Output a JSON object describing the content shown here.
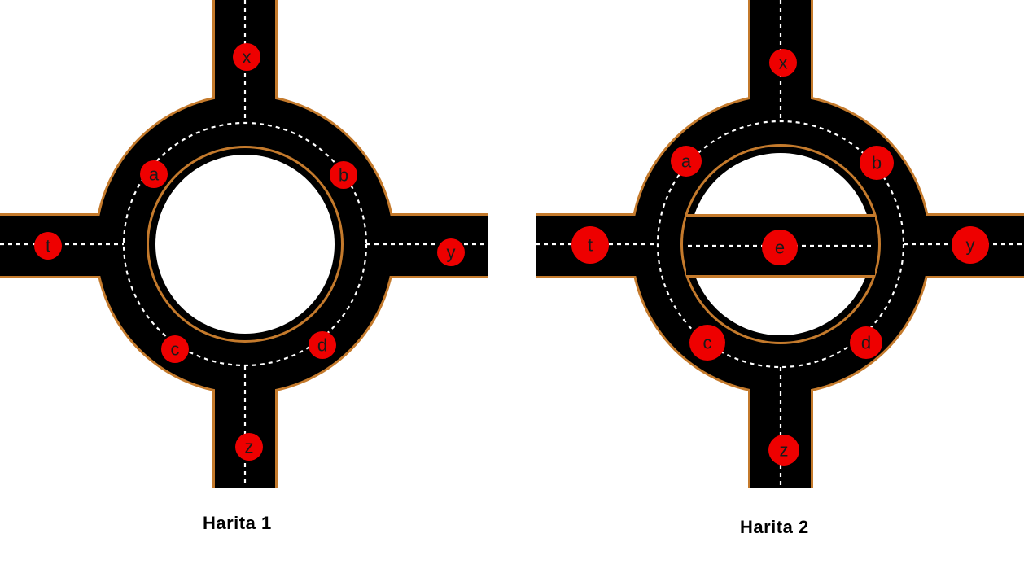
{
  "maps": [
    {
      "caption": "Harita 1",
      "nodes": [
        {
          "id": "x",
          "label": "x"
        },
        {
          "id": "a",
          "label": "a"
        },
        {
          "id": "b",
          "label": "b"
        },
        {
          "id": "t",
          "label": "t"
        },
        {
          "id": "y",
          "label": "y"
        },
        {
          "id": "c",
          "label": "c"
        },
        {
          "id": "d",
          "label": "d"
        },
        {
          "id": "z",
          "label": "z"
        }
      ]
    },
    {
      "caption": "Harita 2",
      "nodes": [
        {
          "id": "x",
          "label": "x"
        },
        {
          "id": "a",
          "label": "a"
        },
        {
          "id": "b",
          "label": "b"
        },
        {
          "id": "t",
          "label": "t"
        },
        {
          "id": "e",
          "label": "e"
        },
        {
          "id": "y",
          "label": "y"
        },
        {
          "id": "c",
          "label": "c"
        },
        {
          "id": "d",
          "label": "d"
        },
        {
          "id": "z",
          "label": "z"
        }
      ]
    }
  ],
  "colors": {
    "road": "#000000",
    "road_edge": "#c47a2c",
    "lane_marking": "#ffffff",
    "node_fill": "#ee0000",
    "node_text": "#1a1a1a"
  }
}
